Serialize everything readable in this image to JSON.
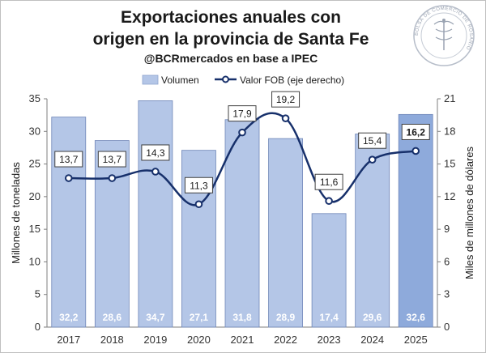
{
  "chart_data": {
    "type": "bar",
    "title": [
      "Exportaciones anuales con",
      "origen en la provincia de Santa Fe"
    ],
    "subtitle": "@BCRmercados en base a IPEC",
    "categories": [
      "2017",
      "2018",
      "2019",
      "2020",
      "2021",
      "2022",
      "2023",
      "2024",
      "2025"
    ],
    "series": [
      {
        "name": "Volumen",
        "type": "bar",
        "axis": "left",
        "color": "#b4c6e7",
        "highlight_color": "#8eaadb",
        "highlight_category": "2025",
        "values": [
          32.2,
          28.6,
          34.7,
          27.1,
          31.8,
          28.9,
          17.4,
          29.6,
          32.6
        ],
        "labels": [
          "32,2",
          "28,6",
          "34,7",
          "27,1",
          "31,8",
          "28,9",
          "17,4",
          "29,6",
          "32,6"
        ]
      },
      {
        "name": "Valor FOB (eje derecho)",
        "type": "line",
        "axis": "right",
        "color": "#17306b",
        "values": [
          13.7,
          13.7,
          14.3,
          11.3,
          17.9,
          19.2,
          11.6,
          15.4,
          16.2
        ],
        "labels": [
          "13,7",
          "13,7",
          "14,3",
          "11,3",
          "17,9",
          "19,2",
          "11,6",
          "15,4",
          "16,2"
        ]
      }
    ],
    "ylabel": "Millones de toneladas",
    "y2label": "Miles de millones de dólares",
    "ylim": [
      0,
      35
    ],
    "y2lim": [
      0,
      21
    ],
    "yticks": [
      "0",
      "5",
      "10",
      "15",
      "20",
      "25",
      "30",
      "35"
    ],
    "y2ticks": [
      "0",
      "3",
      "6",
      "9",
      "12",
      "15",
      "18",
      "21"
    ],
    "grid": false,
    "legend": "top-center"
  },
  "logo": {
    "name": "bolsa-de-comercio-de-rosario-seal",
    "text": "BOLSA DE COMERCIO DE ROSARIO"
  }
}
